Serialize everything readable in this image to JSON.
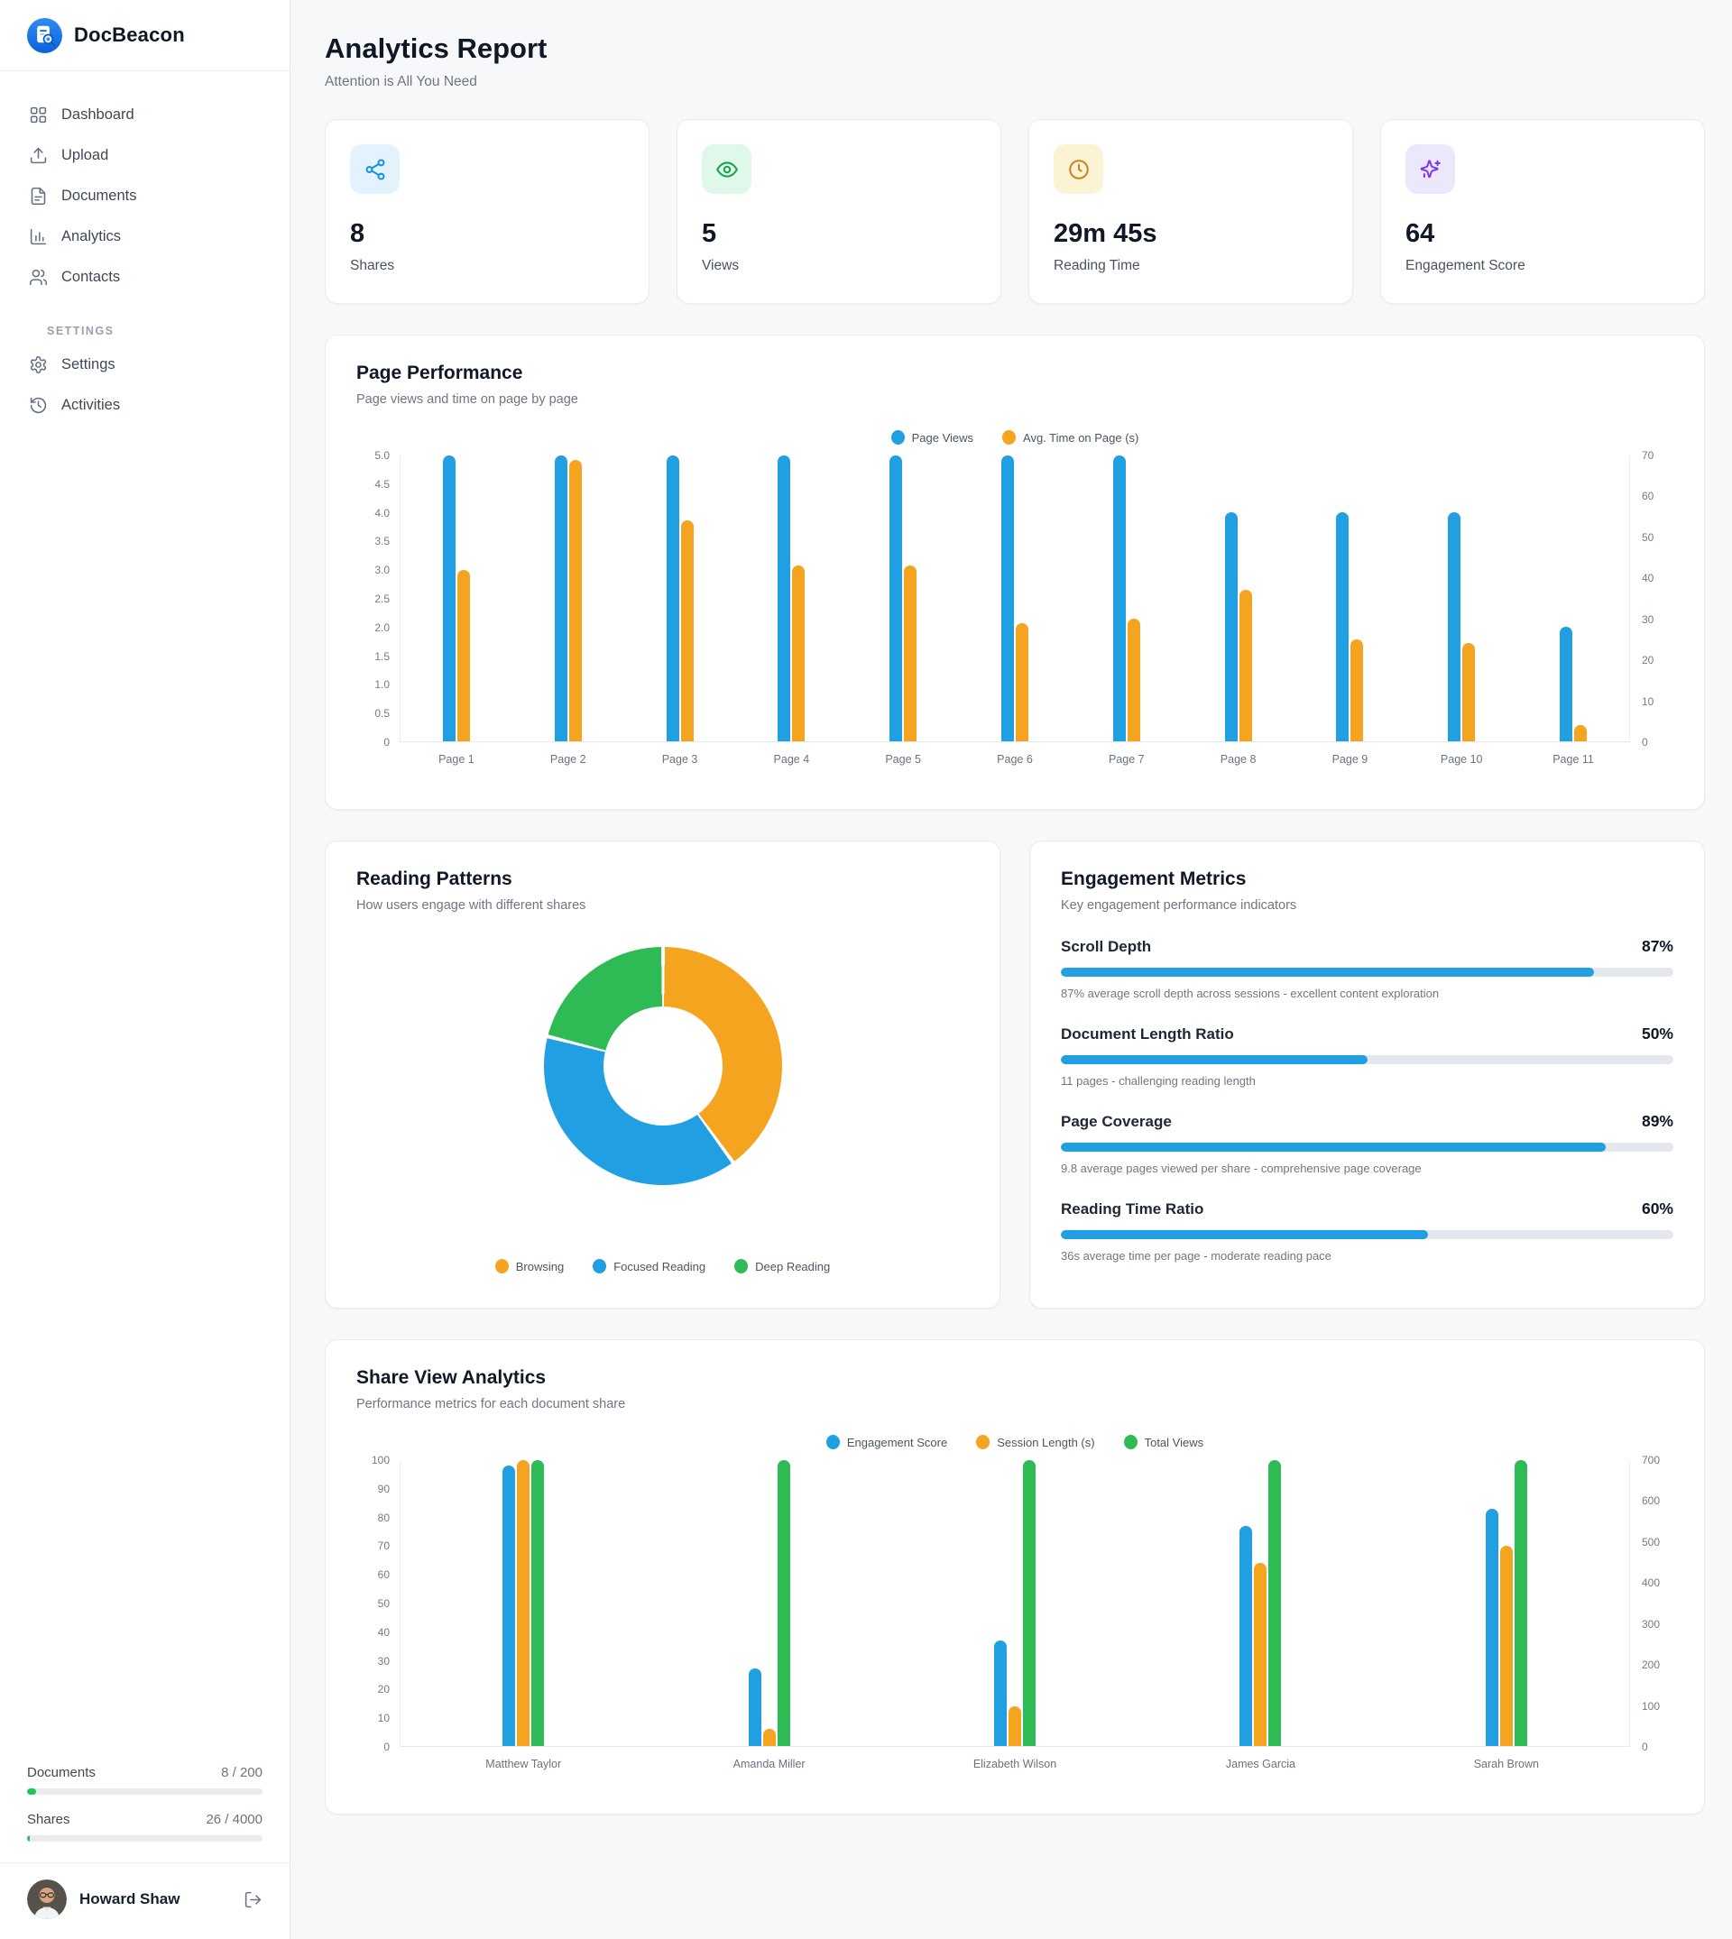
{
  "colors": {
    "blue": "#219FE3",
    "orange": "#F4A41E",
    "green": "#2EBB56",
    "progress_green": "#23C45E"
  },
  "sidebar": {
    "brand": "DocBeacon",
    "nav": [
      {
        "label": "Dashboard"
      },
      {
        "label": "Upload"
      },
      {
        "label": "Documents"
      },
      {
        "label": "Analytics"
      },
      {
        "label": "Contacts"
      }
    ],
    "settings_heading": "SETTINGS",
    "settings_nav": [
      {
        "label": "Settings"
      },
      {
        "label": "Activities"
      }
    ],
    "usage": {
      "documents_label": "Documents",
      "documents_value": "8 / 200",
      "documents_pct": 4,
      "shares_label": "Shares",
      "shares_value": "26 / 4000",
      "shares_pct": 1.2
    },
    "user": {
      "name": "Howard Shaw"
    }
  },
  "header": {
    "title": "Analytics Report",
    "subtitle": "Attention is All You Need"
  },
  "stats": [
    {
      "value": "8",
      "label": "Shares",
      "icon": "share-icon",
      "icon_color": "#1792DD",
      "icon_bg": "#E3F2FC"
    },
    {
      "value": "5",
      "label": "Views",
      "icon": "eye-icon",
      "icon_color": "#17A34A",
      "icon_bg": "#DFF8E9"
    },
    {
      "value": "29m 45s",
      "label": "Reading Time",
      "icon": "clock-icon",
      "icon_color": "#C8861D",
      "icon_bg": "#FCF3D5"
    },
    {
      "value": "64",
      "label": "Engagement Score",
      "icon": "sparkles-icon",
      "icon_color": "#7C3AED",
      "icon_bg": "#ECE8FB"
    }
  ],
  "page_performance": {
    "title": "Page Performance",
    "subtitle": "Page views and time on page by page"
  },
  "reading_patterns": {
    "title": "Reading Patterns",
    "subtitle": "How users engage with different shares"
  },
  "engagement": {
    "title": "Engagement Metrics",
    "subtitle": "Key engagement performance indicators",
    "metrics": [
      {
        "label": "Scroll Depth",
        "value": "87%",
        "pct": 87,
        "desc": "87% average scroll depth across sessions - excellent content exploration"
      },
      {
        "label": "Document Length Ratio",
        "value": "50%",
        "pct": 50,
        "desc": "11 pages - challenging reading length"
      },
      {
        "label": "Page Coverage",
        "value": "89%",
        "pct": 89,
        "desc": "9.8 average pages viewed per share - comprehensive page coverage"
      },
      {
        "label": "Reading Time Ratio",
        "value": "60%",
        "pct": 60,
        "desc": "36s average time per page - moderate reading pace"
      }
    ]
  },
  "share_view": {
    "title": "Share View Analytics",
    "subtitle": "Performance metrics for each document share"
  },
  "chart_data": [
    {
      "id": "page-performance",
      "type": "bar",
      "title": "Page Performance",
      "categories": [
        "Page 1",
        "Page 2",
        "Page 3",
        "Page 4",
        "Page 5",
        "Page 6",
        "Page 7",
        "Page 8",
        "Page 9",
        "Page 10",
        "Page 11"
      ],
      "series": [
        {
          "name": "Page Views",
          "axis": "left",
          "color": "#219FE3",
          "values": [
            5,
            5,
            5,
            5,
            5,
            5,
            5,
            4,
            4,
            4,
            2
          ]
        },
        {
          "name": "Avg. Time on Page (s)",
          "axis": "right",
          "color": "#F4A41E",
          "values": [
            42,
            69,
            54,
            43,
            43,
            29,
            30,
            37,
            25,
            24,
            4
          ]
        }
      ],
      "left_axis": {
        "min": 0,
        "max": 5,
        "ticks": [
          "5.0",
          "4.5",
          "4.0",
          "3.5",
          "3.0",
          "2.5",
          "2.0",
          "1.5",
          "1.0",
          "0.5",
          "0"
        ]
      },
      "right_axis": {
        "min": 0,
        "max": 70,
        "ticks": [
          "70",
          "60",
          "50",
          "40",
          "30",
          "20",
          "10",
          "0"
        ]
      },
      "legend_position": "top-center",
      "grid": false
    },
    {
      "id": "reading-patterns",
      "type": "pie",
      "donut": true,
      "title": "Reading Patterns",
      "labels": [
        "Browsing",
        "Focused Reading",
        "Deep Reading"
      ],
      "values": [
        40,
        39,
        21
      ],
      "colors": [
        "#F4A41E",
        "#219FE3",
        "#2EBB56"
      ],
      "legend_position": "bottom-center"
    },
    {
      "id": "share-view-analytics",
      "type": "bar",
      "title": "Share View Analytics",
      "categories": [
        "Matthew Taylor",
        "Amanda Miller",
        "Elizabeth Wilson",
        "James Garcia",
        "Sarah Brown"
      ],
      "series": [
        {
          "name": "Engagement Score",
          "axis": "left",
          "color": "#219FE3",
          "values": [
            98,
            27,
            37,
            77,
            83
          ]
        },
        {
          "name": "Session Length (s)",
          "axis": "left",
          "color": "#F4A41E",
          "values": [
            100,
            6,
            14,
            64,
            70
          ]
        },
        {
          "name": "Total Views",
          "axis": "right",
          "color": "#2EBB56",
          "values": [
            700,
            700,
            700,
            700,
            700
          ]
        }
      ],
      "left_axis": {
        "min": 0,
        "max": 100,
        "ticks": [
          "100",
          "90",
          "80",
          "70",
          "60",
          "50",
          "40",
          "30",
          "20",
          "10",
          "0"
        ]
      },
      "right_axis": {
        "min": 0,
        "max": 700,
        "ticks": [
          "700",
          "600",
          "500",
          "400",
          "300",
          "200",
          "100",
          "0"
        ]
      },
      "legend_position": "top-center",
      "grid": false
    }
  ]
}
